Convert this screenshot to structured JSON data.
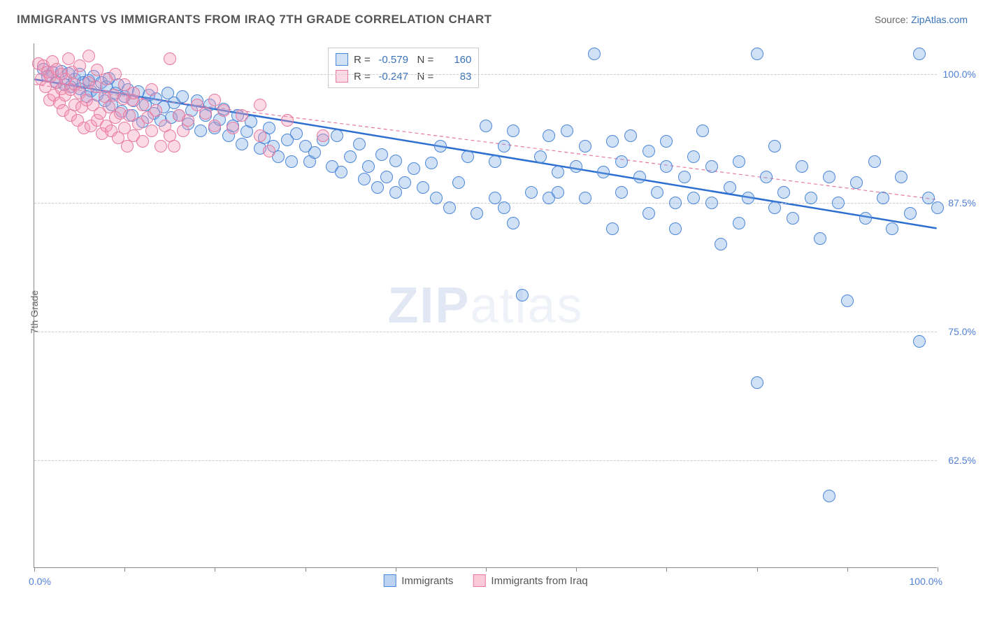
{
  "title": "IMMIGRANTS VS IMMIGRANTS FROM IRAQ 7TH GRADE CORRELATION CHART",
  "source_prefix": "Source: ",
  "source_link": "ZipAtlas.com",
  "ylabel": "7th Grade",
  "watermark_a": "ZIP",
  "watermark_b": "atlas",
  "chart": {
    "type": "scatter",
    "xlim": [
      0,
      100
    ],
    "ylim": [
      52,
      103
    ],
    "y_gridlines": [
      62.5,
      75.0,
      87.5,
      100.0
    ],
    "y_tick_labels": [
      "62.5%",
      "75.0%",
      "87.5%",
      "100.0%"
    ],
    "x_ticks": [
      0,
      10,
      20,
      30,
      40,
      50,
      60,
      70,
      80,
      90,
      100
    ],
    "x_tick_left": "0.0%",
    "x_tick_right": "100.0%",
    "background_color": "#ffffff",
    "grid_color": "#cccccc",
    "axis_color": "#888888",
    "tick_label_color": "#5081d8",
    "marker_radius": 9,
    "marker_stroke_width": 1.5,
    "series": [
      {
        "name": "Immigrants",
        "fill": "rgba(120,165,225,0.35)",
        "stroke": "#4b87d9",
        "R_label": "R =",
        "R": "-0.579",
        "N_label": "N =",
        "N": "160",
        "trend": {
          "x1": 0,
          "y1": 99.5,
          "x2": 100,
          "y2": 85.0,
          "color": "#2d6fd0",
          "width": 2.5,
          "dash": "none"
        },
        "points": [
          [
            1,
            100.5
          ],
          [
            1.5,
            99.8
          ],
          [
            2,
            100.2
          ],
          [
            2.5,
            99.2
          ],
          [
            3,
            100.3
          ],
          [
            3.3,
            99.0
          ],
          [
            3.8,
            100.1
          ],
          [
            4,
            98.8
          ],
          [
            4.5,
            99.5
          ],
          [
            5,
            100.0
          ],
          [
            5,
            98.6
          ],
          [
            5.4,
            99.2
          ],
          [
            5.8,
            97.8
          ],
          [
            6,
            99.4
          ],
          [
            6.3,
            98.4
          ],
          [
            6.6,
            99.8
          ],
          [
            7,
            98.0
          ],
          [
            7.4,
            99.2
          ],
          [
            7.8,
            97.4
          ],
          [
            8,
            98.8
          ],
          [
            8.3,
            99.6
          ],
          [
            8.6,
            97.0
          ],
          [
            9,
            98.2
          ],
          [
            9.3,
            99.0
          ],
          [
            9.7,
            96.4
          ],
          [
            10,
            97.8
          ],
          [
            10.4,
            98.5
          ],
          [
            10.8,
            96.0
          ],
          [
            11,
            97.4
          ],
          [
            11.5,
            98.3
          ],
          [
            12,
            95.4
          ],
          [
            12.3,
            97.0
          ],
          [
            12.7,
            98.0
          ],
          [
            13.2,
            96.2
          ],
          [
            13.5,
            97.6
          ],
          [
            14,
            95.5
          ],
          [
            14.3,
            96.8
          ],
          [
            14.8,
            98.2
          ],
          [
            15.2,
            95.8
          ],
          [
            15.5,
            97.2
          ],
          [
            16,
            96.0
          ],
          [
            16.4,
            97.8
          ],
          [
            17,
            95.2
          ],
          [
            17.4,
            96.5
          ],
          [
            18,
            97.4
          ],
          [
            18.4,
            94.5
          ],
          [
            19,
            96.0
          ],
          [
            19.4,
            97.0
          ],
          [
            20,
            94.8
          ],
          [
            20.5,
            95.6
          ],
          [
            21,
            96.6
          ],
          [
            21.5,
            94.0
          ],
          [
            22,
            95.0
          ],
          [
            22.5,
            96.0
          ],
          [
            23,
            93.2
          ],
          [
            23.5,
            94.4
          ],
          [
            24,
            95.4
          ],
          [
            25,
            92.8
          ],
          [
            25.5,
            93.8
          ],
          [
            26,
            94.8
          ],
          [
            26.5,
            93.0
          ],
          [
            27,
            92.0
          ],
          [
            28,
            93.6
          ],
          [
            28.5,
            91.5
          ],
          [
            29,
            94.2
          ],
          [
            30,
            93.0
          ],
          [
            30.5,
            91.5
          ],
          [
            31,
            92.4
          ],
          [
            32,
            93.6
          ],
          [
            33,
            91.0
          ],
          [
            33.5,
            94.0
          ],
          [
            34,
            90.5
          ],
          [
            35,
            92.0
          ],
          [
            36,
            93.2
          ],
          [
            36.5,
            89.8
          ],
          [
            37,
            91.0
          ],
          [
            38,
            89.0
          ],
          [
            38.5,
            92.2
          ],
          [
            39,
            90.0
          ],
          [
            40,
            91.6
          ],
          [
            40,
            88.5
          ],
          [
            41,
            89.5
          ],
          [
            42,
            90.8
          ],
          [
            43,
            89.0
          ],
          [
            44,
            91.4
          ],
          [
            44.5,
            88.0
          ],
          [
            45,
            93.0
          ],
          [
            46,
            87.0
          ],
          [
            47,
            89.5
          ],
          [
            48,
            92.0
          ],
          [
            49,
            86.5
          ],
          [
            50,
            95.0
          ],
          [
            51,
            88.0
          ],
          [
            51,
            91.5
          ],
          [
            52,
            93.0
          ],
          [
            52,
            87.0
          ],
          [
            53,
            94.5
          ],
          [
            53,
            85.5
          ],
          [
            54,
            78.5
          ],
          [
            55,
            88.5
          ],
          [
            56,
            92.0
          ],
          [
            57,
            94.0
          ],
          [
            57,
            88.0
          ],
          [
            58,
            90.5
          ],
          [
            58,
            88.5
          ],
          [
            59,
            94.5
          ],
          [
            60,
            91.0
          ],
          [
            61,
            93.0
          ],
          [
            61,
            88.0
          ],
          [
            62,
            102.0
          ],
          [
            63,
            90.5
          ],
          [
            64,
            85.0
          ],
          [
            64,
            93.5
          ],
          [
            65,
            88.5
          ],
          [
            65,
            91.5
          ],
          [
            66,
            94.0
          ],
          [
            67,
            90.0
          ],
          [
            68,
            92.5
          ],
          [
            68,
            86.5
          ],
          [
            69,
            88.5
          ],
          [
            70,
            91.0
          ],
          [
            70,
            93.5
          ],
          [
            71,
            87.5
          ],
          [
            71,
            85.0
          ],
          [
            72,
            90.0
          ],
          [
            73,
            92.0
          ],
          [
            73,
            88.0
          ],
          [
            74,
            94.5
          ],
          [
            75,
            87.5
          ],
          [
            75,
            91.0
          ],
          [
            76,
            83.5
          ],
          [
            77,
            89.0
          ],
          [
            78,
            91.5
          ],
          [
            78,
            85.5
          ],
          [
            79,
            88.0
          ],
          [
            80,
            102.0
          ],
          [
            80,
            70.0
          ],
          [
            81,
            90.0
          ],
          [
            82,
            87.0
          ],
          [
            82,
            93.0
          ],
          [
            83,
            88.5
          ],
          [
            84,
            86.0
          ],
          [
            85,
            91.0
          ],
          [
            86,
            88.0
          ],
          [
            87,
            84.0
          ],
          [
            88,
            90.0
          ],
          [
            88,
            59.0
          ],
          [
            89,
            87.5
          ],
          [
            90,
            78.0
          ],
          [
            91,
            89.5
          ],
          [
            92,
            86.0
          ],
          [
            93,
            91.5
          ],
          [
            94,
            88.0
          ],
          [
            95,
            85.0
          ],
          [
            96,
            90.0
          ],
          [
            97,
            86.5
          ],
          [
            98,
            102.0
          ],
          [
            98,
            74.0
          ],
          [
            99,
            88.0
          ],
          [
            100,
            87.0
          ]
        ]
      },
      {
        "name": "Immigrants from Iraq",
        "fill": "rgba(245,150,180,0.35)",
        "stroke": "#e87aa0",
        "R_label": "R =",
        "R": "-0.247",
        "N_label": "N =",
        "N": "83",
        "trend": {
          "x1": 0,
          "y1": 99.0,
          "x2": 100,
          "y2": 87.8,
          "color": "#e87aa0",
          "width": 1.2,
          "dash": "5,4"
        },
        "points": [
          [
            0.5,
            101.0
          ],
          [
            0.8,
            99.5
          ],
          [
            1,
            100.8
          ],
          [
            1.2,
            98.8
          ],
          [
            1.5,
            100.2
          ],
          [
            1.7,
            97.5
          ],
          [
            1.8,
            99.8
          ],
          [
            2,
            101.2
          ],
          [
            2.2,
            98.0
          ],
          [
            2.4,
            99.2
          ],
          [
            2.5,
            100.5
          ],
          [
            2.8,
            97.2
          ],
          [
            3,
            98.6
          ],
          [
            3,
            100.0
          ],
          [
            3.2,
            96.5
          ],
          [
            3.4,
            98.0
          ],
          [
            3.5,
            99.5
          ],
          [
            3.8,
            101.5
          ],
          [
            4,
            96.0
          ],
          [
            4,
            98.5
          ],
          [
            4.2,
            100.2
          ],
          [
            4.5,
            97.0
          ],
          [
            4.5,
            99.0
          ],
          [
            4.8,
            95.5
          ],
          [
            5,
            98.2
          ],
          [
            5,
            100.8
          ],
          [
            5.3,
            96.8
          ],
          [
            5.5,
            94.8
          ],
          [
            5.8,
            97.5
          ],
          [
            6,
            99.2
          ],
          [
            6,
            101.8
          ],
          [
            6.3,
            95.0
          ],
          [
            6.5,
            97.0
          ],
          [
            6.8,
            98.8
          ],
          [
            7,
            95.5
          ],
          [
            7,
            100.4
          ],
          [
            7.3,
            96.2
          ],
          [
            7.5,
            94.2
          ],
          [
            7.8,
            97.8
          ],
          [
            8,
            99.5
          ],
          [
            8,
            95.0
          ],
          [
            8.3,
            96.8
          ],
          [
            8.5,
            94.5
          ],
          [
            8.8,
            98.0
          ],
          [
            9,
            95.8
          ],
          [
            9,
            100.0
          ],
          [
            9.3,
            93.8
          ],
          [
            9.5,
            96.2
          ],
          [
            9.8,
            97.6
          ],
          [
            10,
            94.8
          ],
          [
            10,
            99.0
          ],
          [
            10.3,
            93.0
          ],
          [
            10.5,
            96.0
          ],
          [
            10.8,
            97.5
          ],
          [
            11,
            94.0
          ],
          [
            11,
            98.2
          ],
          [
            11.5,
            95.2
          ],
          [
            12,
            97.0
          ],
          [
            12,
            93.5
          ],
          [
            12.5,
            95.8
          ],
          [
            13,
            98.5
          ],
          [
            13,
            94.5
          ],
          [
            13.5,
            96.5
          ],
          [
            14,
            93.0
          ],
          [
            14.5,
            95.0
          ],
          [
            15,
            101.5
          ],
          [
            15,
            94.0
          ],
          [
            15.5,
            93.0
          ],
          [
            16,
            96.0
          ],
          [
            16.5,
            94.5
          ],
          [
            17,
            95.5
          ],
          [
            18,
            97.0
          ],
          [
            19,
            96.2
          ],
          [
            20,
            97.5
          ],
          [
            20,
            95.0
          ],
          [
            21,
            96.5
          ],
          [
            22,
            94.8
          ],
          [
            23,
            96.0
          ],
          [
            25,
            94.0
          ],
          [
            25,
            97.0
          ],
          [
            26,
            92.5
          ],
          [
            28,
            95.5
          ],
          [
            32,
            94.0
          ]
        ]
      }
    ],
    "legend_bottom": [
      {
        "label": "Immigrants",
        "fill": "rgba(120,165,225,0.5)",
        "stroke": "#4b87d9"
      },
      {
        "label": "Immigrants from Iraq",
        "fill": "rgba(245,150,180,0.5)",
        "stroke": "#e87aa0"
      }
    ]
  }
}
